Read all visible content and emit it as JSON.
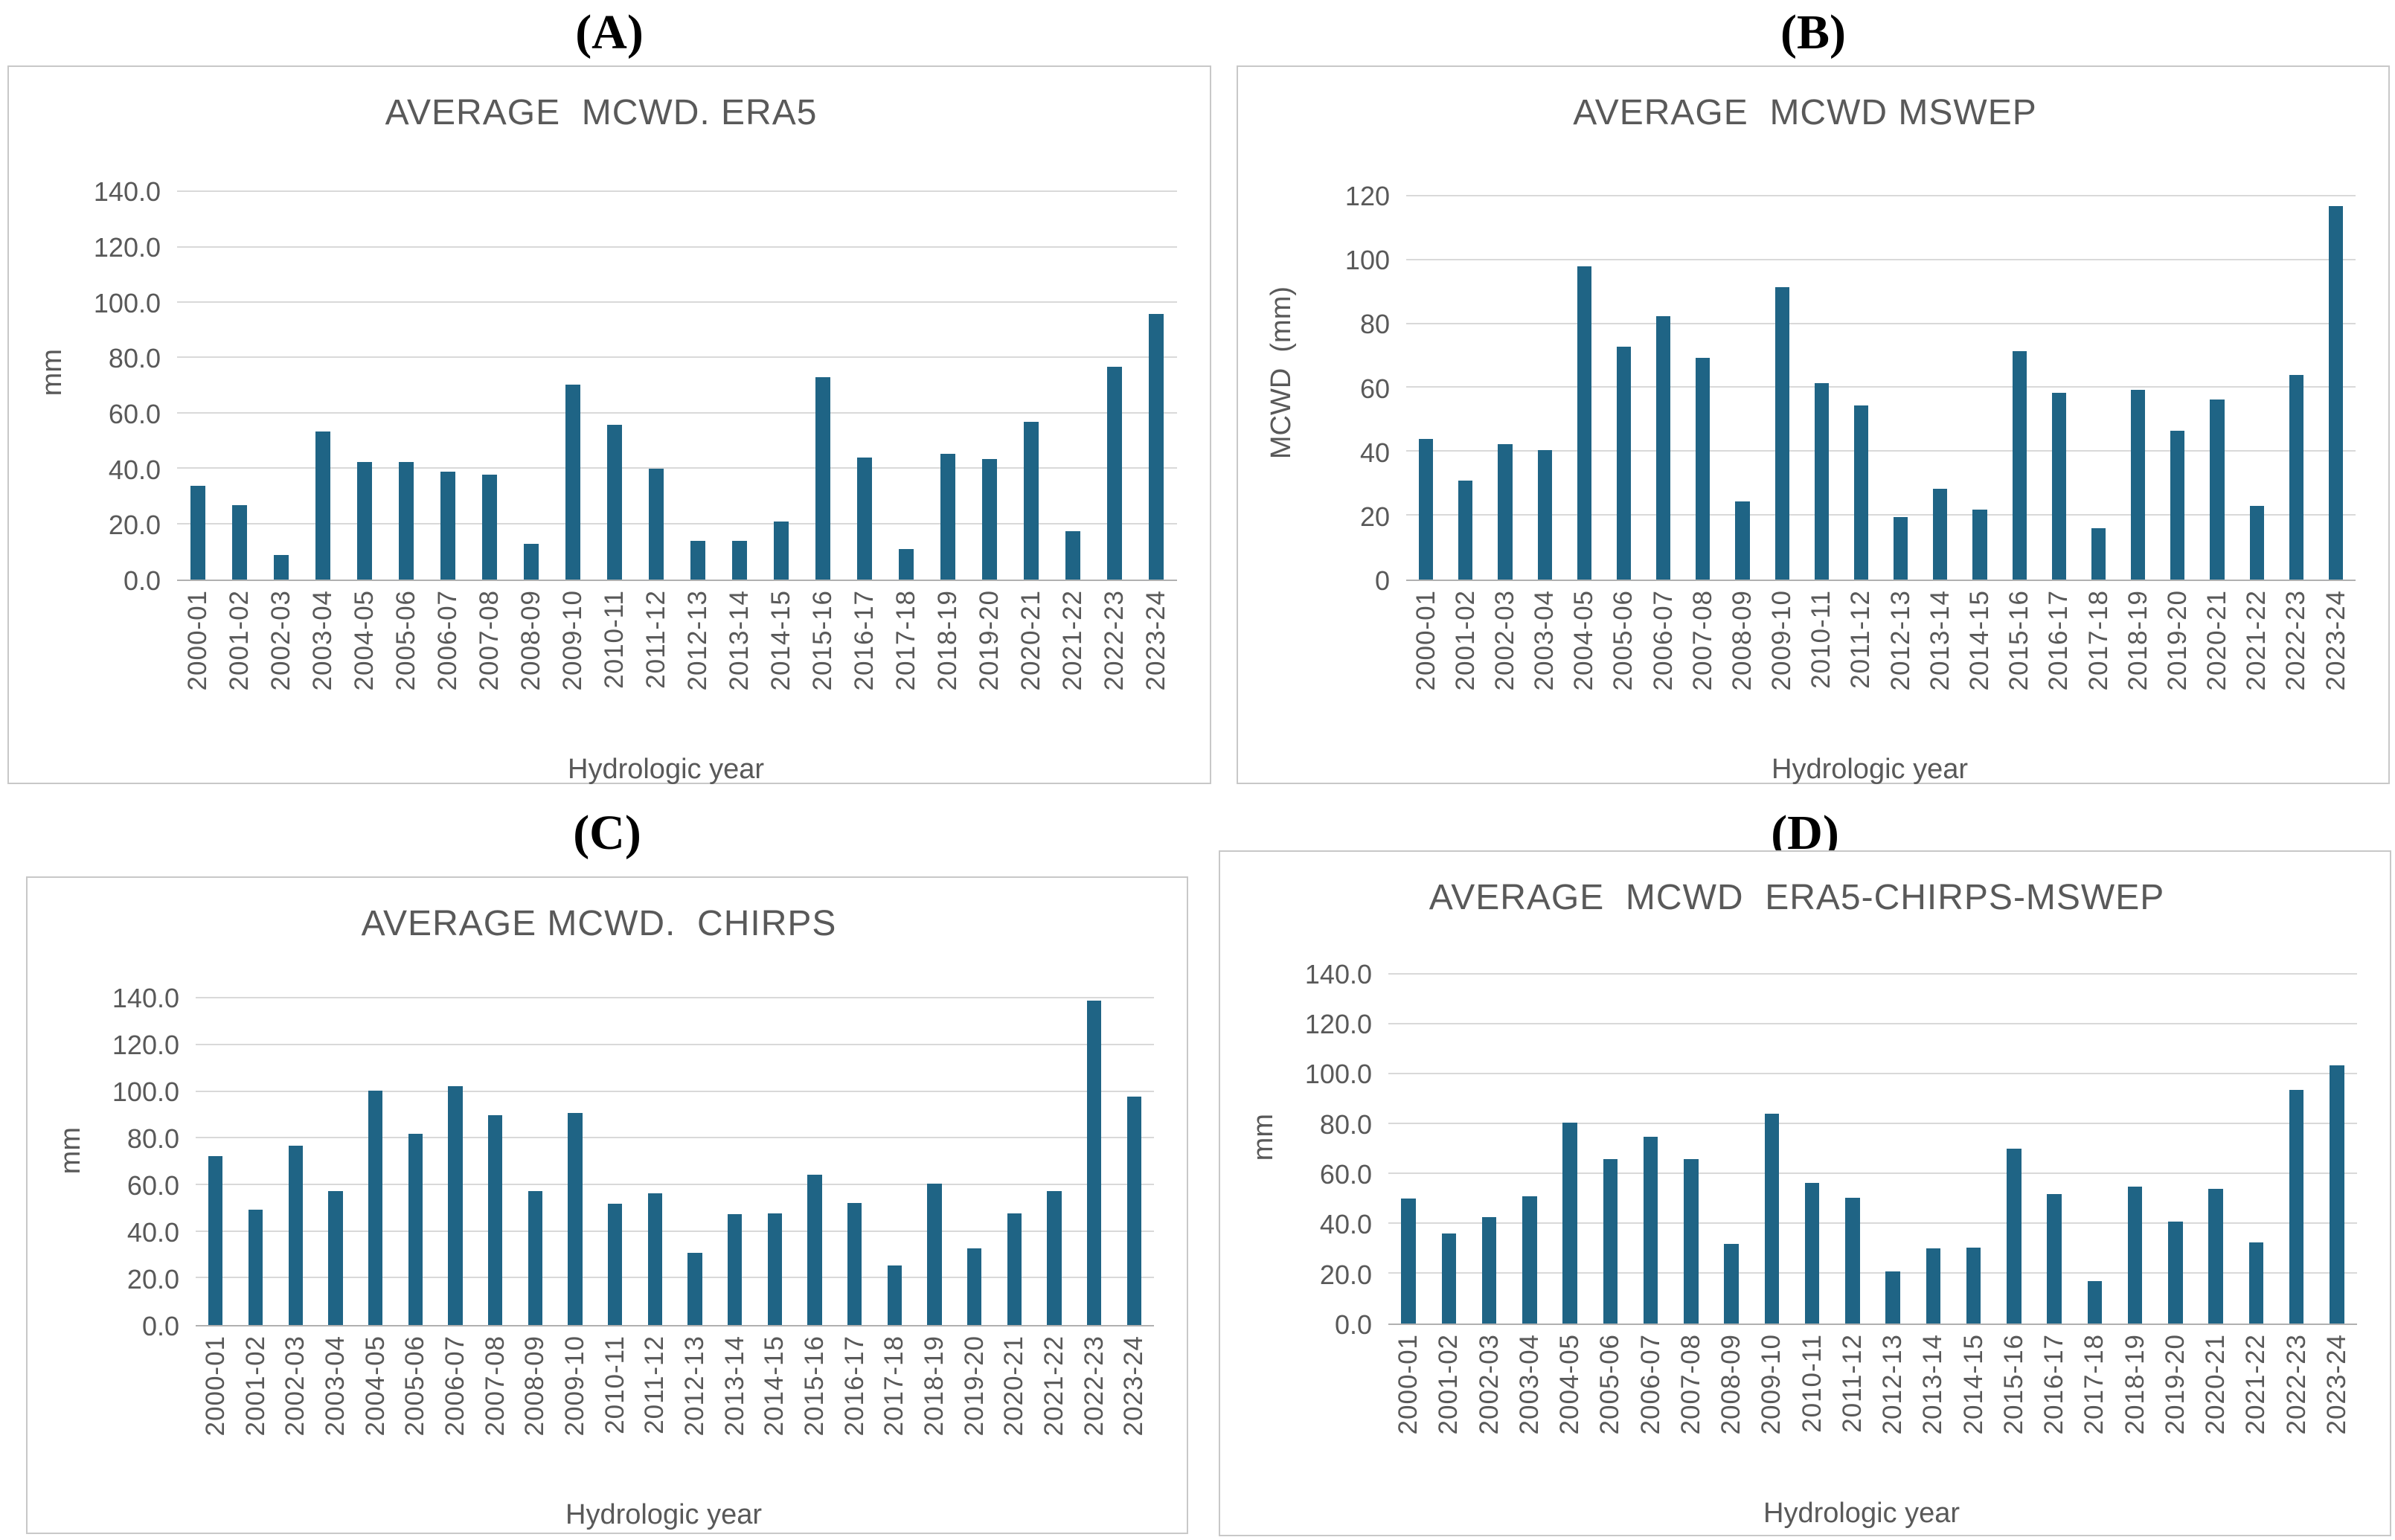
{
  "figure": {
    "panel_labels": [
      "(A)",
      "(B)",
      "(C)",
      "(D)"
    ]
  },
  "colors": {
    "bar": "#1f6485",
    "gridline": "#d9d9d9",
    "axis_line": "#b0b0b0",
    "text": "#595959",
    "panel_border": "#c8c8c8"
  },
  "chart_data": [
    {
      "type": "bar",
      "panel": "A",
      "title": "AVERAGE  MCWD. ERA5",
      "ylabel": "mm",
      "xlabel": "Hydrologic year",
      "ylim": [
        0,
        150
      ],
      "yticks": [
        0,
        20,
        40,
        60,
        80,
        100,
        120,
        140
      ],
      "ytick_decimals": 1,
      "grid": true,
      "legend": "none",
      "categories": [
        "2000-01",
        "2001-02",
        "2002-03",
        "2003-04",
        "2004-05",
        "2005-06",
        "2006-07",
        "2007-08",
        "2008-09",
        "2009-10",
        "2010-11",
        "2011-12",
        "2012-13",
        "2013-14",
        "2014-15",
        "2015-16",
        "2016-17",
        "2017-18",
        "2018-19",
        "2019-20",
        "2020-21",
        "2021-22",
        "2022-23",
        "2023-24"
      ],
      "values": [
        34,
        27,
        9,
        53.5,
        42.5,
        42.5,
        39,
        38,
        13,
        70.5,
        56,
        40,
        14,
        14,
        21,
        73,
        44,
        11,
        45.5,
        43.5,
        57,
        17.5,
        77,
        96
      ]
    },
    {
      "type": "bar",
      "panel": "B",
      "title": "AVERAGE  MCWD MSWEP",
      "ylabel": "MCWD  (mm)",
      "xlabel": "Hydrologic year",
      "ylim": [
        0,
        130
      ],
      "yticks": [
        0,
        20,
        40,
        60,
        80,
        100,
        120
      ],
      "ytick_decimals": 0,
      "grid": true,
      "legend": "none",
      "categories": [
        "2000-01",
        "2001-02",
        "2002-03",
        "2003-04",
        "2004-05",
        "2005-06",
        "2006-07",
        "2007-08",
        "2008-09",
        "2009-10",
        "2010-11",
        "2011-12",
        "2012-13",
        "2013-14",
        "2014-15",
        "2015-16",
        "2016-17",
        "2017-18",
        "2018-19",
        "2019-20",
        "2020-21",
        "2021-22",
        "2022-23",
        "2023-24"
      ],
      "values": [
        44,
        31,
        42.5,
        40.5,
        98,
        73,
        82.5,
        69.5,
        24.5,
        91.5,
        61.5,
        54.5,
        19.5,
        28.5,
        22,
        71.5,
        58.5,
        16,
        59.5,
        46.5,
        56.5,
        23,
        64,
        117
      ]
    },
    {
      "type": "bar",
      "panel": "C",
      "title": "AVERAGE MCWD.  CHIRPS",
      "ylabel": "mm",
      "xlabel": "Hydrologic year",
      "ylim": [
        0,
        150
      ],
      "yticks": [
        0,
        20,
        40,
        60,
        80,
        100,
        120,
        140
      ],
      "ytick_decimals": 1,
      "grid": true,
      "legend": "none",
      "categories": [
        "2000-01",
        "2001-02",
        "2002-03",
        "2003-04",
        "2004-05",
        "2005-06",
        "2006-07",
        "2007-08",
        "2008-09",
        "2009-10",
        "2010-11",
        "2011-12",
        "2012-13",
        "2013-14",
        "2014-15",
        "2015-16",
        "2016-17",
        "2017-18",
        "2018-19",
        "2019-20",
        "2020-21",
        "2021-22",
        "2022-23",
        "2023-24"
      ],
      "values": [
        72.5,
        49.5,
        77,
        57.5,
        100.5,
        82,
        102.5,
        90,
        57.5,
        91,
        52,
        56.5,
        31,
        47.5,
        48,
        64.5,
        52.5,
        25.5,
        60.5,
        33,
        48,
        57.5,
        139,
        98
      ]
    },
    {
      "type": "bar",
      "panel": "D",
      "title": "AVERAGE  MCWD  ERA5-CHIRPS-MSWEP",
      "ylabel": "mm",
      "xlabel": "Hydrologic year",
      "ylim": [
        0,
        150
      ],
      "yticks": [
        0,
        20,
        40,
        60,
        80,
        100,
        120,
        140
      ],
      "ytick_decimals": 1,
      "grid": true,
      "legend": "none",
      "categories": [
        "2000-01",
        "2001-02",
        "2002-03",
        "2003-04",
        "2004-05",
        "2005-06",
        "2006-07",
        "2007-08",
        "2008-09",
        "2009-10",
        "2010-11",
        "2011-12",
        "2012-13",
        "2013-14",
        "2014-15",
        "2015-16",
        "2016-17",
        "2017-18",
        "2018-19",
        "2019-20",
        "2020-21",
        "2021-22",
        "2022-23",
        "2023-24"
      ],
      "values": [
        50,
        36,
        42.5,
        51,
        80.5,
        66,
        75,
        66,
        32,
        84,
        56.5,
        50.5,
        21,
        30,
        30.5,
        70,
        52,
        17,
        55,
        41,
        54,
        32.5,
        93.5,
        103.5
      ]
    }
  ]
}
